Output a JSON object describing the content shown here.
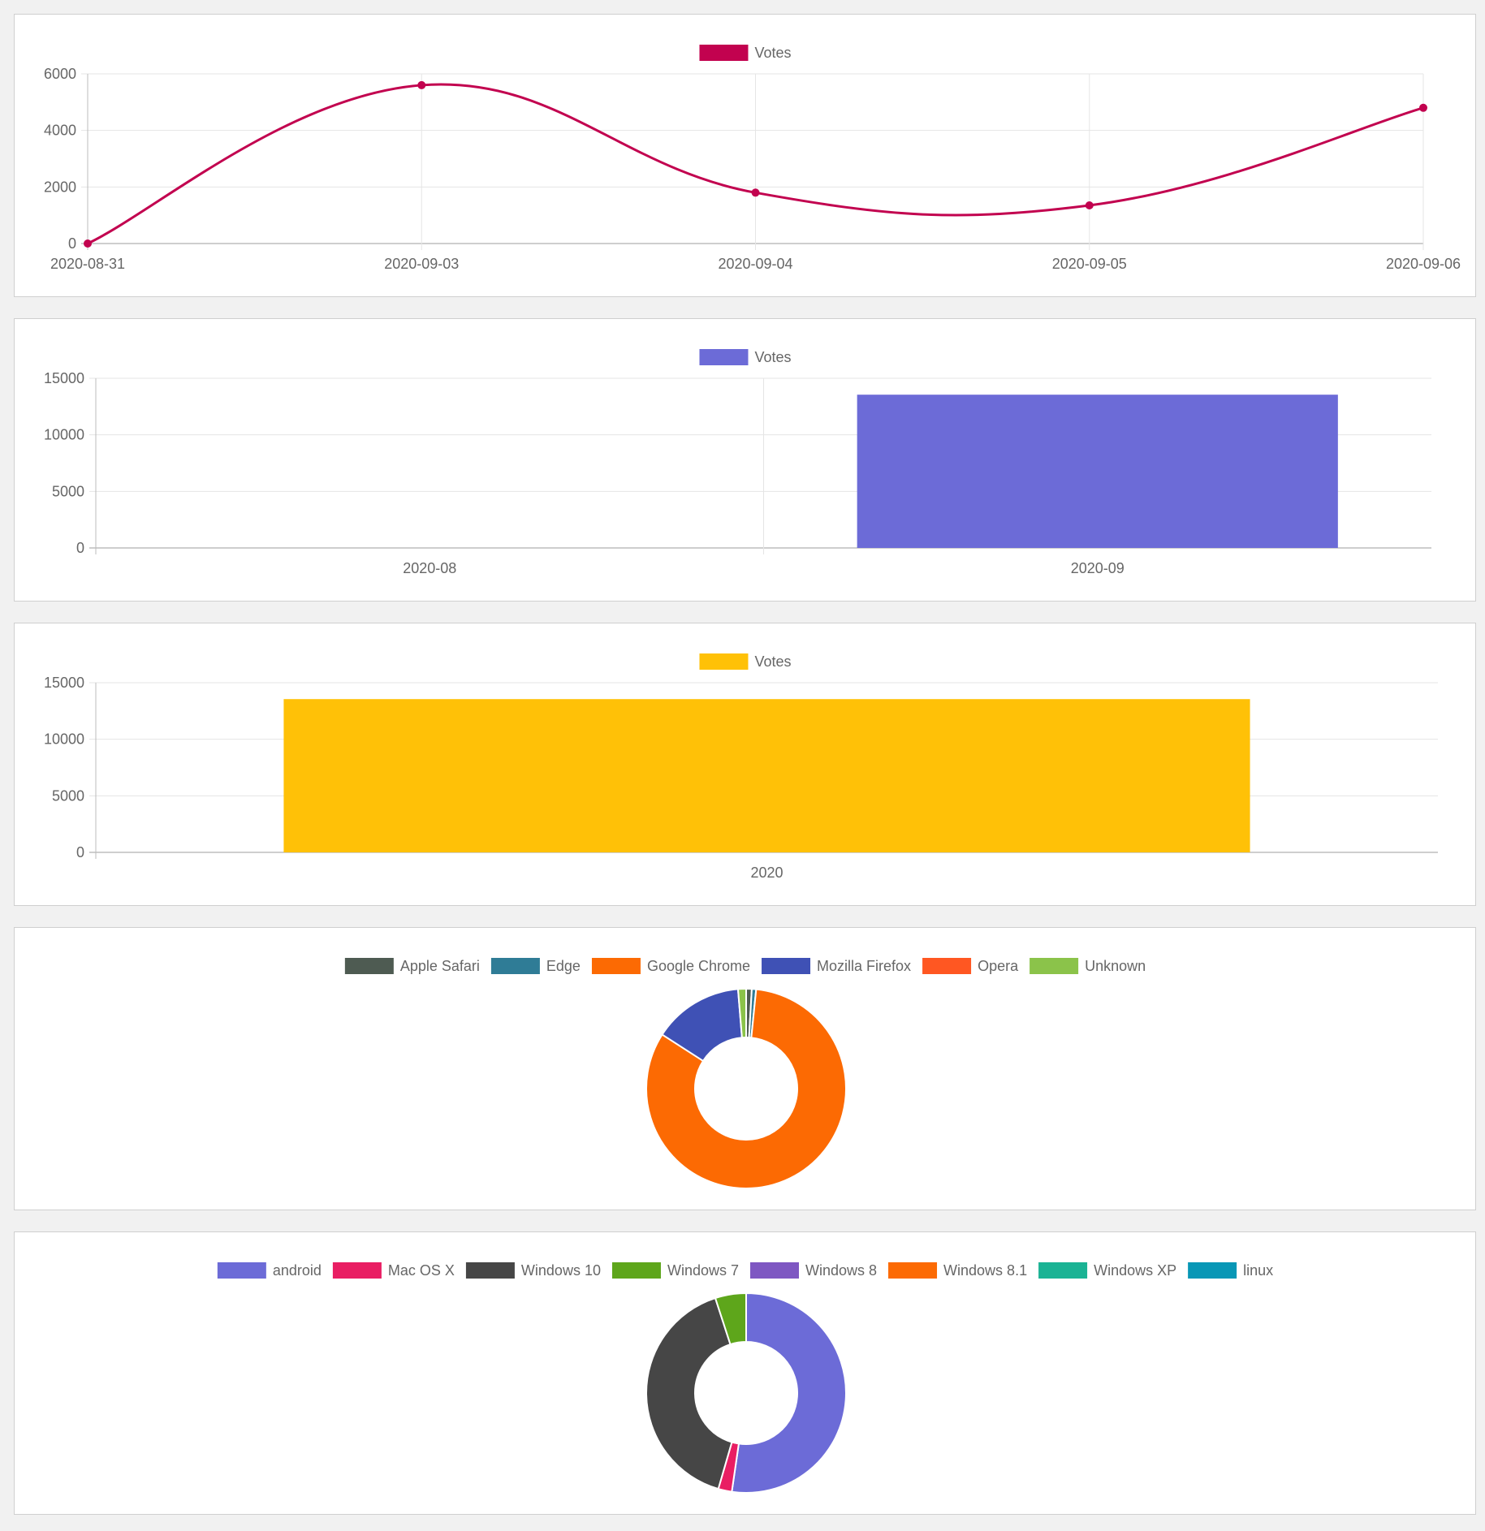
{
  "chart_data": [
    {
      "type": "line",
      "legend_position": "top",
      "grid": true,
      "x": [
        "2020-08-31",
        "2020-09-03",
        "2020-09-04",
        "2020-09-05",
        "2020-09-06"
      ],
      "ylim": [
        0,
        6000
      ],
      "yticks": [
        0,
        2000,
        4000,
        6000
      ],
      "series": [
        {
          "name": "Votes",
          "color": "#c2024f",
          "values": [
            0,
            5600,
            1800,
            1350,
            4800
          ]
        }
      ]
    },
    {
      "type": "bar",
      "legend_position": "top",
      "grid": true,
      "categories": [
        "2020-08",
        "2020-09"
      ],
      "ylim": [
        0,
        15000
      ],
      "yticks": [
        0,
        5000,
        10000,
        15000
      ],
      "series": [
        {
          "name": "Votes",
          "color": "#6c6bd7",
          "values": [
            0,
            13550
          ]
        }
      ]
    },
    {
      "type": "bar",
      "legend_position": "top",
      "grid": true,
      "categories": [
        "2020"
      ],
      "ylim": [
        0,
        15000
      ],
      "yticks": [
        0,
        5000,
        10000,
        15000
      ],
      "series": [
        {
          "name": "Votes",
          "color": "#ffc107",
          "values": [
            13550
          ]
        }
      ]
    },
    {
      "type": "pie",
      "style": "doughnut",
      "legend_position": "top",
      "labels": [
        "Apple Safari",
        "Edge",
        "Google Chrome",
        "Mozilla Firefox",
        "Opera",
        "Unknown"
      ],
      "colors": [
        "#4e5b52",
        "#2f7c96",
        "#fc6a03",
        "#3f51b5",
        "#ff5722",
        "#8bc34a"
      ],
      "values": [
        0.9,
        0.7,
        82.5,
        14.6,
        0,
        1.3
      ]
    },
    {
      "type": "pie",
      "style": "doughnut",
      "legend_position": "top",
      "labels": [
        "android",
        "Mac OS X",
        "Windows 10",
        "Windows 7",
        "Windows 8",
        "Windows 8.1",
        "Windows XP",
        "linux"
      ],
      "colors": [
        "#6c6bd7",
        "#e91e63",
        "#464646",
        "#5ea61b",
        "#7e57c2",
        "#fc6a03",
        "#1ab394",
        "#0897b6"
      ],
      "values": [
        52.3,
        2.2,
        40.5,
        5.0,
        0,
        0,
        0,
        0
      ]
    }
  ]
}
